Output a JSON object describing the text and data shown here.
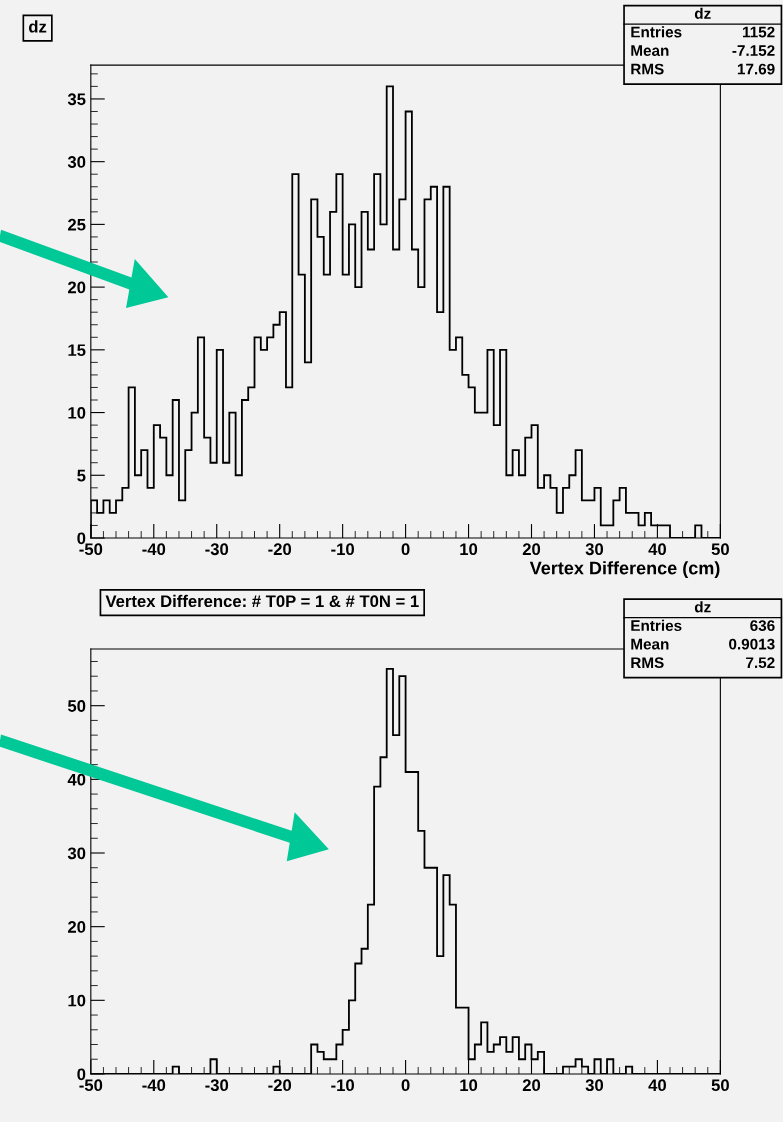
{
  "chart_data": [
    {
      "type": "histogram",
      "title": "dz",
      "xlabel": "Vertex Difference (cm)",
      "bins": [
        -50,
        -49,
        -48,
        -47,
        -46,
        -45,
        -44,
        -43,
        -42,
        -41,
        -40,
        -39,
        -38,
        -37,
        -36,
        -35,
        -34,
        -33,
        -32,
        -31,
        -30,
        -29,
        -28,
        -27,
        -26,
        -25,
        -24,
        -23,
        -22,
        -21,
        -20,
        -19,
        -18,
        -17,
        -16,
        -15,
        -14,
        -13,
        -12,
        -11,
        -10,
        -9,
        -8,
        -7,
        -6,
        -5,
        -4,
        -3,
        -2,
        -1,
        0,
        1,
        2,
        3,
        4,
        5,
        6,
        7,
        8,
        9,
        10,
        11,
        12,
        13,
        14,
        15,
        16,
        17,
        18,
        19,
        20,
        21,
        22,
        23,
        24,
        25,
        26,
        27,
        28,
        29,
        30,
        31,
        32,
        33,
        34,
        35,
        36,
        37,
        38,
        39,
        40,
        41,
        42,
        43,
        44,
        45,
        46,
        47,
        48,
        49,
        50
      ],
      "values": [
        3,
        2,
        3,
        2,
        3,
        4,
        12,
        5,
        7,
        4,
        9,
        8,
        5,
        11,
        3,
        7,
        10,
        16,
        8,
        6,
        15,
        6,
        10,
        5,
        11,
        12,
        16,
        15,
        16,
        17,
        18,
        12,
        29,
        21,
        14,
        27,
        24,
        21,
        26,
        29,
        21,
        25,
        20,
        26,
        23,
        29,
        25,
        36,
        23,
        27,
        34,
        23,
        20,
        27,
        28,
        18,
        28,
        15,
        16,
        13,
        12,
        10,
        10,
        15,
        9,
        15,
        5,
        7,
        5,
        8,
        9,
        4,
        5,
        4,
        2,
        4,
        5,
        7,
        3,
        3,
        4,
        1,
        1,
        3,
        4,
        2,
        2,
        1,
        2,
        1,
        1,
        1,
        0,
        0,
        0,
        0,
        1,
        0,
        0,
        0
      ],
      "color": "#000000",
      "xlim": [
        -50,
        50
      ],
      "xticks": [
        -50,
        -40,
        -30,
        -20,
        -10,
        0,
        10,
        20,
        30,
        40,
        50
      ],
      "ylim": [
        0,
        37.7
      ],
      "yticks": [
        0,
        5,
        10,
        15,
        20,
        25,
        30,
        35
      ],
      "grid": false,
      "legend": false,
      "annotations": [
        "dz",
        "Entries",
        "1152",
        "Mean",
        "-7.152",
        "RMS",
        "17.69"
      ]
    },
    {
      "type": "histogram",
      "title": "Vertex Difference: # T0P = 1 & # T0N = 1",
      "bins": [
        -50,
        -49,
        -48,
        -47,
        -46,
        -45,
        -44,
        -43,
        -42,
        -41,
        -40,
        -39,
        -38,
        -37,
        -36,
        -35,
        -34,
        -33,
        -32,
        -31,
        -30,
        -29,
        -28,
        -27,
        -26,
        -25,
        -24,
        -23,
        -22,
        -21,
        -20,
        -19,
        -18,
        -17,
        -16,
        -15,
        -14,
        -13,
        -12,
        -11,
        -10,
        -9,
        -8,
        -7,
        -6,
        -5,
        -4,
        -3,
        -2,
        -1,
        0,
        1,
        2,
        3,
        4,
        5,
        6,
        7,
        8,
        9,
        10,
        11,
        12,
        13,
        14,
        15,
        16,
        17,
        18,
        19,
        20,
        21,
        22,
        23,
        24,
        25,
        26,
        27,
        28,
        29,
        30,
        31,
        32,
        33,
        34,
        35,
        36,
        37,
        38,
        39,
        40,
        41,
        42,
        43,
        44,
        45,
        46,
        47,
        48,
        49,
        50
      ],
      "values": [
        0,
        0,
        0,
        0,
        0,
        0,
        0,
        0,
        0,
        0,
        0,
        0,
        0,
        1,
        0,
        0,
        0,
        0,
        0,
        2,
        0,
        0,
        0,
        0,
        0,
        0,
        0,
        0,
        0,
        1,
        0,
        0,
        0,
        0,
        0,
        4,
        3,
        2,
        2,
        4,
        6,
        10,
        15,
        17,
        23,
        39,
        43,
        55,
        46,
        54,
        41,
        41,
        33,
        28,
        28,
        16,
        27,
        23,
        9,
        9,
        2,
        4,
        7,
        3,
        4,
        5,
        3,
        5,
        2,
        4,
        2,
        3,
        0,
        0,
        0,
        1,
        1,
        2,
        1,
        0,
        2,
        0,
        2,
        0,
        0,
        1,
        0,
        0,
        0,
        0,
        0,
        0,
        0,
        0,
        0,
        0,
        0,
        0,
        0,
        0
      ],
      "color": "#000000",
      "xlim": [
        -50,
        50
      ],
      "xticks": [
        -50,
        -40,
        -30,
        -20,
        -10,
        0,
        10,
        20,
        30,
        40,
        50
      ],
      "ylim": [
        0,
        57.7
      ],
      "yticks": [
        0,
        10,
        20,
        30,
        40,
        50
      ],
      "grid": false,
      "legend": false,
      "annotations": [
        "dz",
        "Entries",
        "636",
        "Mean",
        "0.9013",
        "RMS",
        "7.52"
      ]
    }
  ]
}
